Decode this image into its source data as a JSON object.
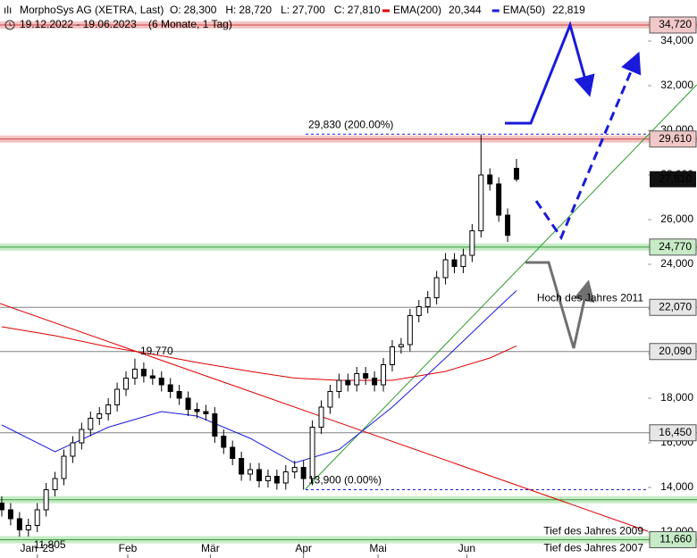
{
  "chart_data": {
    "type": "candlestick",
    "title": "MorphoSys AG (XETRA, Last)",
    "subtitle": "19.12.2022 - 19.06.2023",
    "period": "(6 Monate, 1 Tag)",
    "quote": [
      {
        "label": "O:",
        "value": "28,300"
      },
      {
        "label": "H:",
        "value": "28,720"
      },
      {
        "label": "L:",
        "value": "27,700"
      },
      {
        "label": "C:",
        "value": "27,810"
      }
    ],
    "categories": [
      null,
      null,
      null,
      null,
      null,
      null,
      null,
      null,
      null,
      null,
      null,
      null,
      null,
      null,
      null,
      null,
      null,
      null,
      null,
      null,
      null,
      null,
      null,
      null,
      null,
      null,
      null,
      null,
      null,
      null,
      null,
      null,
      null,
      null,
      null,
      null,
      null,
      null,
      null,
      null,
      null,
      null,
      null,
      null,
      null,
      null,
      null,
      null,
      null,
      null,
      null,
      null,
      null,
      null,
      null,
      null,
      null,
      null,
      null
    ],
    "open": [
      13300,
      13000,
      12600,
      12100,
      12300,
      13000,
      13900,
      14400,
      15400,
      16000,
      16600,
      17100,
      17300,
      17700,
      18400,
      18900,
      19300,
      19000,
      18900,
      18600,
      18300,
      18000,
      17500,
      17400,
      17300,
      16300,
      15800,
      15300,
      14600,
      14800,
      14300,
      14500,
      14200,
      14700,
      14900,
      14400,
      16700,
      17600,
      18300,
      18800,
      18600,
      19100,
      18900,
      18600,
      19500,
      20300,
      20400,
      21700,
      22100,
      22500,
      23400,
      24200,
      23900,
      24400,
      25500,
      28000,
      27600,
      26200,
      28300
    ],
    "high": [
      13600,
      13300,
      12900,
      12600,
      13300,
      14200,
      14700,
      15700,
      16300,
      16900,
      17400,
      17600,
      18000,
      18700,
      19200,
      19770,
      19600,
      19300,
      19200,
      18900,
      18600,
      18300,
      17800,
      17700,
      17600,
      16600,
      16100,
      15600,
      15100,
      15100,
      14800,
      14800,
      15000,
      15200,
      15200,
      17000,
      17900,
      18600,
      19100,
      19100,
      19400,
      19400,
      19200,
      19800,
      20600,
      20700,
      22000,
      22400,
      22800,
      23700,
      24500,
      24500,
      24700,
      25800,
      29830,
      28300,
      27900,
      26500,
      28720
    ],
    "low": [
      12700,
      12300,
      11800,
      11805,
      12000,
      12700,
      13600,
      14100,
      15100,
      15700,
      16300,
      16800,
      17000,
      17400,
      18100,
      18600,
      18700,
      18600,
      18300,
      18000,
      17700,
      17200,
      17100,
      17000,
      16000,
      15500,
      15000,
      14300,
      14300,
      14000,
      14000,
      13900,
      13900,
      14400,
      13900,
      14100,
      16400,
      17300,
      18000,
      18300,
      18300,
      18600,
      18300,
      18300,
      19200,
      20000,
      20100,
      21400,
      21800,
      22200,
      23100,
      23600,
      23600,
      24100,
      25200,
      27300,
      25900,
      25000,
      27700
    ],
    "close": [
      13000,
      12600,
      12100,
      12300,
      13000,
      13900,
      14400,
      15400,
      16000,
      16600,
      17100,
      17300,
      17700,
      18400,
      18900,
      19300,
      19000,
      18900,
      18600,
      18300,
      18000,
      17500,
      17400,
      17300,
      16300,
      15800,
      15300,
      14600,
      14800,
      14300,
      14500,
      14200,
      14700,
      14900,
      14400,
      16700,
      17600,
      18300,
      18800,
      18600,
      19100,
      18900,
      18600,
      19500,
      20300,
      20400,
      21700,
      22100,
      22500,
      23400,
      24200,
      23900,
      24400,
      25500,
      28000,
      27600,
      26200,
      25300,
      27810
    ],
    "last_label": "27,810",
    "series": [
      {
        "name": "EMA(200)",
        "color": "#e00000",
        "x": [
          0,
          6,
          12,
          18,
          22,
          28,
          33,
          38,
          44,
          50,
          55,
          58
        ],
        "values": [
          21200,
          20800,
          20300,
          19900,
          19600,
          19200,
          18900,
          18800,
          18800,
          19200,
          19800,
          20344
        ],
        "value_labels": [
          null,
          null,
          null,
          null,
          null,
          null,
          null,
          null,
          null,
          null,
          null,
          "20,344"
        ]
      },
      {
        "name": "EMA(50)",
        "color": "#1a1adb",
        "x": [
          0,
          6,
          12,
          18,
          22,
          28,
          33,
          38,
          44,
          50,
          55,
          58
        ],
        "values": [
          16800,
          15600,
          16700,
          17400,
          17200,
          16200,
          15100,
          15700,
          17600,
          19800,
          21700,
          22819
        ],
        "value_labels": [
          null,
          null,
          null,
          null,
          null,
          null,
          null,
          null,
          null,
          null,
          null,
          "22,819"
        ]
      }
    ],
    "xlim": [
      -0.2,
      72.8
    ],
    "ylim": [
      10840,
      35840
    ],
    "xticks": [
      {
        "value": 4,
        "label": "Jan '23"
      },
      {
        "value": 14.2,
        "label": "Feb"
      },
      {
        "value": 23.5,
        "label": "Mär"
      },
      {
        "value": 34,
        "label": "Apr"
      },
      {
        "value": 42.4,
        "label": "Mai"
      },
      {
        "value": 52.4,
        "label": "Jun"
      }
    ],
    "yticks": [
      {
        "value": 12000,
        "label": "12,000"
      },
      {
        "value": 14000,
        "label": "14,000"
      },
      {
        "value": 16000,
        "label": "16,000"
      },
      {
        "value": 18000,
        "label": "18,000"
      },
      {
        "value": 20000,
        "label": "20,000"
      },
      {
        "value": 22000,
        "label": "22,000"
      },
      {
        "value": 24000,
        "label": "24,000"
      },
      {
        "value": 26000,
        "label": "26,000"
      },
      {
        "value": 28000,
        "label": "28,000"
      },
      {
        "value": 30000,
        "label": "30,000"
      },
      {
        "value": 32000,
        "label": "32,000"
      },
      {
        "value": 34000,
        "label": "34,000"
      }
    ],
    "levels": [
      {
        "value": 34720,
        "label": "34,720",
        "style": "resistance"
      },
      {
        "value": 29610,
        "label": "29,610",
        "style": "resistance"
      },
      {
        "value": 24770,
        "label": "24,770",
        "style": "support"
      },
      {
        "value": 22070,
        "label": "22,070",
        "style": "line",
        "notes": [
          "Hoch des Jahres 2011"
        ]
      },
      {
        "value": 20090,
        "label": "20,090",
        "style": "line"
      },
      {
        "value": 16450,
        "label": "16,450",
        "style": "line"
      },
      {
        "value": 13450,
        "style": "support"
      },
      {
        "value": 11660,
        "label": "11,660",
        "style": "support",
        "notes": [
          "Tief des Jahres 2009",
          "Tief des Jahres 2007"
        ]
      }
    ],
    "fib": [
      {
        "value": 29830,
        "label": "29,830 (200.00%)"
      },
      {
        "value": 13900,
        "label": "13,900 (0.00%)"
      }
    ],
    "annotations": [
      {
        "x": 15,
        "value": 19770,
        "label": "19.770"
      },
      {
        "x": 3,
        "value": 11805,
        "label": "11.805"
      }
    ],
    "trendlines": [
      {
        "color": "#e00000",
        "x": [
          -0.2,
          72.8
        ],
        "values": [
          22240,
          12040
        ]
      },
      {
        "color": "#2a9a2a",
        "x": [
          34.2,
          78.3
        ],
        "values": [
          13920,
          32040
        ]
      }
    ]
  }
}
